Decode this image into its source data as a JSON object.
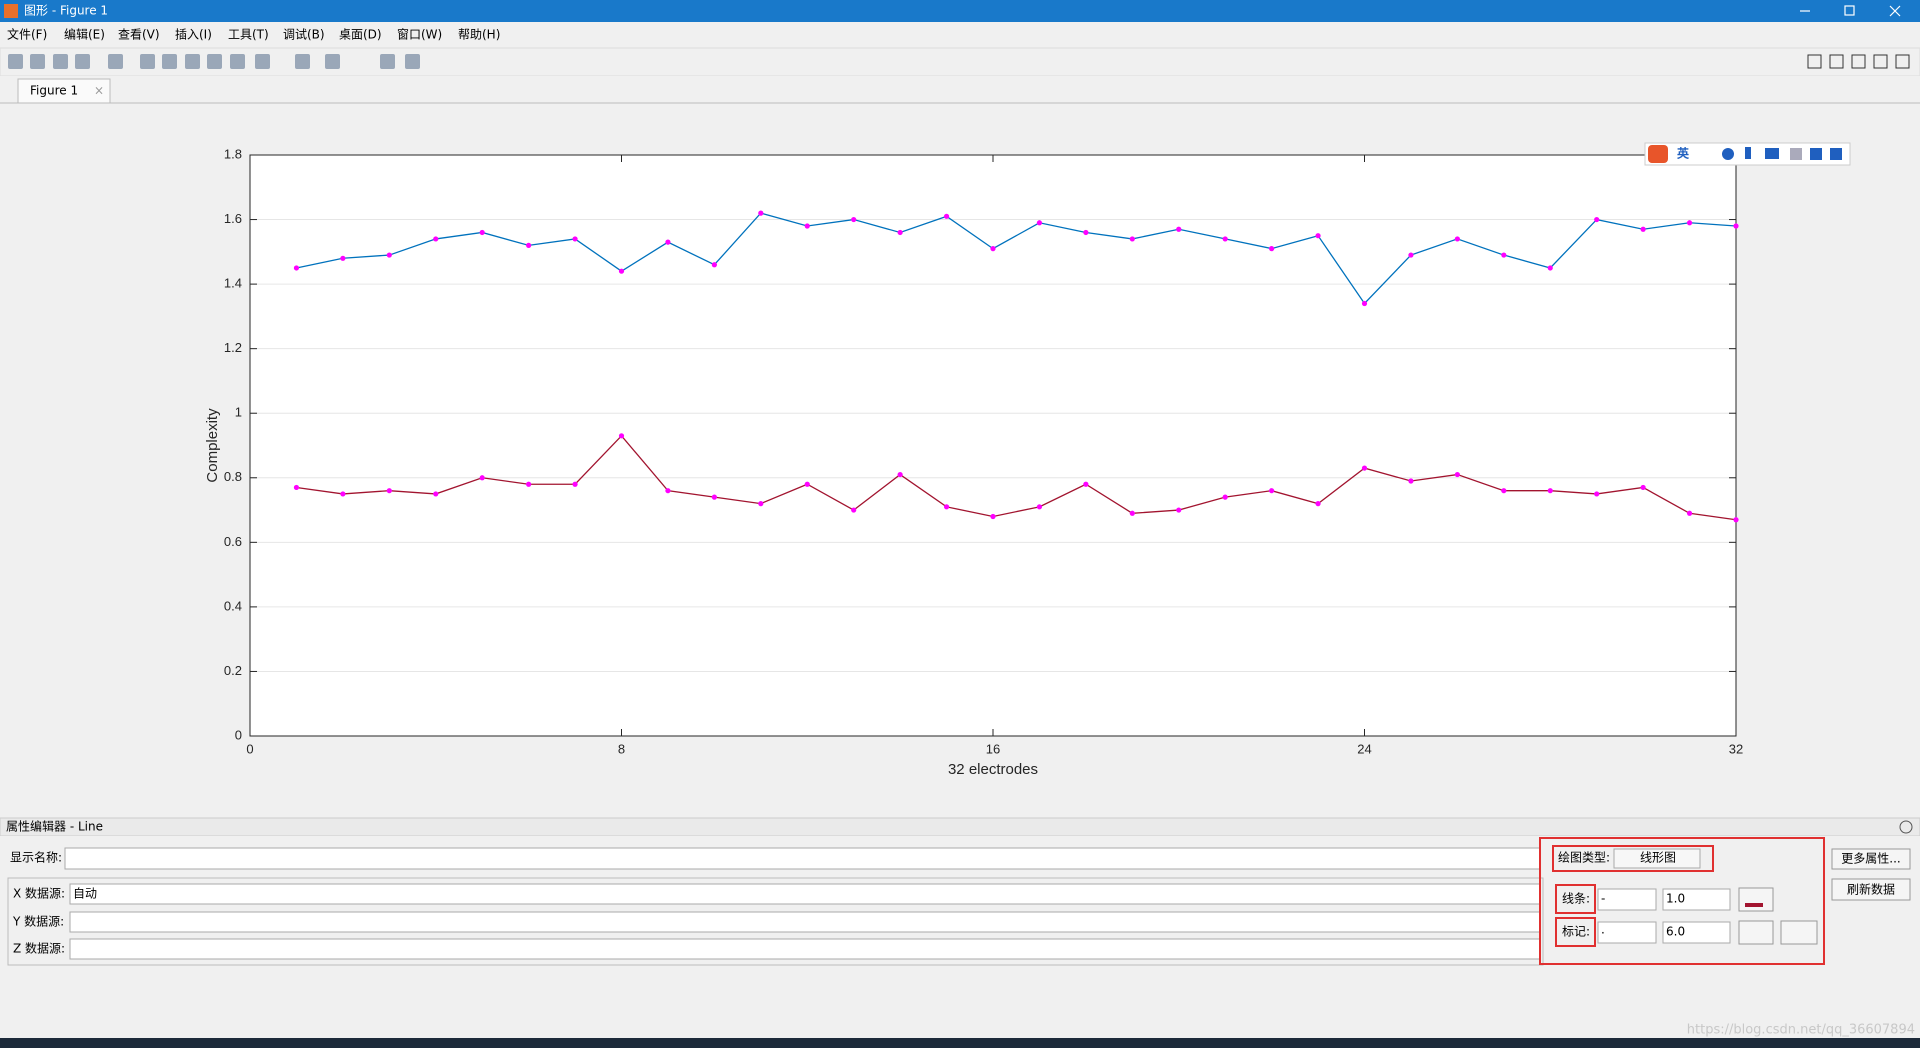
{
  "window": {
    "title": "图形 - Figure 1",
    "menus": [
      "文件(F)",
      "编辑(E)",
      "查看(V)",
      "插入(I)",
      "工具(T)",
      "调试(B)",
      "桌面(D)",
      "窗口(W)",
      "帮助(H)"
    ],
    "tab": "Figure 1"
  },
  "chart_data": {
    "type": "line",
    "xlabel": "32 electrodes",
    "ylabel": "Complexity",
    "x": [
      1,
      2,
      3,
      4,
      5,
      6,
      7,
      8,
      9,
      10,
      11,
      12,
      13,
      14,
      15,
      16,
      17,
      18,
      19,
      20,
      21,
      22,
      23,
      24,
      25,
      26,
      27,
      28,
      29,
      30,
      31,
      32
    ],
    "series": [
      {
        "color": "#0072bd",
        "marker_color": "#ff00ff",
        "values": [
          1.45,
          1.48,
          1.49,
          1.54,
          1.56,
          1.52,
          1.54,
          1.44,
          1.53,
          1.46,
          1.62,
          1.58,
          1.6,
          1.56,
          1.61,
          1.51,
          1.59,
          1.56,
          1.54,
          1.57,
          1.54,
          1.51,
          1.55,
          1.34,
          1.49,
          1.54,
          1.49,
          1.45,
          1.6,
          1.57,
          1.59,
          1.58
        ]
      },
      {
        "color": "#a2142f",
        "marker_color": "#ff00ff",
        "values": [
          0.77,
          0.75,
          0.76,
          0.75,
          0.8,
          0.78,
          0.78,
          0.93,
          0.76,
          0.74,
          0.72,
          0.78,
          0.7,
          0.81,
          0.71,
          0.68,
          0.71,
          0.78,
          0.69,
          0.7,
          0.74,
          0.76,
          0.72,
          0.83,
          0.79,
          0.81,
          0.76,
          0.76,
          0.75,
          0.77,
          0.69,
          0.67
        ]
      }
    ],
    "xlim": [
      0,
      32
    ],
    "xticks": [
      0,
      8,
      16,
      24,
      32
    ],
    "ylim": [
      0,
      1.8
    ],
    "yticks": [
      0,
      0.2,
      0.4,
      0.6,
      0.8,
      1,
      1.2,
      1.4,
      1.6,
      1.8
    ],
    "grid": "y"
  },
  "property_editor": {
    "title": "属性编辑器 - Line",
    "display_name_label": "显示名称:",
    "x_source_label": "X 数据源:",
    "x_source_value": "自动",
    "y_source_label": "Y 数据源:",
    "z_source_label": "Z 数据源:",
    "plot_type_label": "绘图类型:",
    "plot_type_value": "线形图",
    "line_label": "线条:",
    "line_style": "-",
    "line_width": "1.0",
    "marker_label": "标记:",
    "marker_style": ".",
    "marker_size": "6.0",
    "more_button": "更多属性...",
    "refresh_button": "刷新数据"
  },
  "ime": "英",
  "watermark": "https://blog.csdn.net/qq_36607894"
}
